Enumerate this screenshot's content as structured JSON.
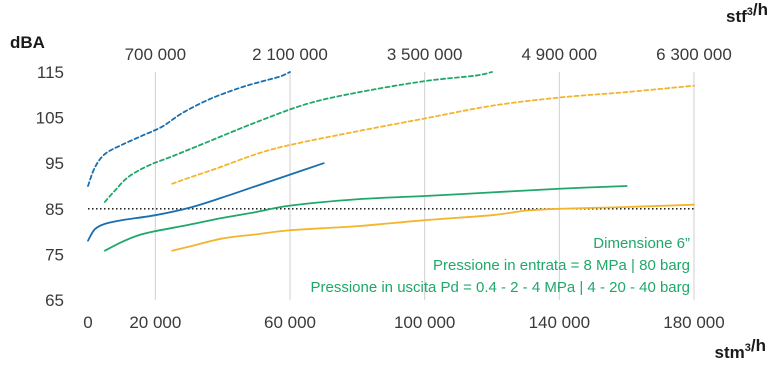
{
  "chart_data": {
    "type": "line",
    "ylabel": "dBA",
    "xlabel": "stm³/h",
    "x2label": "stf³/h",
    "ylim": [
      65,
      115
    ],
    "xlim": [
      0,
      180000
    ],
    "yticks": [
      "65",
      "75",
      "85",
      "95",
      "105",
      "115"
    ],
    "xticks": [
      "0",
      "20 000",
      "60 000",
      "100 000",
      "140 000",
      "180 000"
    ],
    "xtick_values": [
      0,
      20000,
      60000,
      100000,
      140000,
      180000
    ],
    "x2ticks": [
      "700 000",
      "2 100 000",
      "3 500 000",
      "4 900 000",
      "6 300 000"
    ],
    "x2tick_values": [
      20000,
      60000,
      100000,
      140000,
      180000
    ],
    "grid": "vertical",
    "threshold": {
      "y": 85,
      "style": "dotted",
      "color": "#000000"
    },
    "series": [
      {
        "color": "#1a6fb0",
        "dash": true,
        "points": [
          [
            0,
            90
          ],
          [
            2000,
            94
          ],
          [
            5000,
            97
          ],
          [
            10000,
            99
          ],
          [
            16000,
            101
          ],
          [
            22000,
            103
          ],
          [
            28000,
            106
          ],
          [
            36000,
            109
          ],
          [
            45000,
            111.5
          ],
          [
            52000,
            113
          ],
          [
            57000,
            114
          ],
          [
            60000,
            115
          ]
        ]
      },
      {
        "color": "#1a6fb0",
        "dash": false,
        "points": [
          [
            0,
            78
          ],
          [
            2000,
            80.5
          ],
          [
            5000,
            81.7
          ],
          [
            10000,
            82.5
          ],
          [
            20000,
            83.6
          ],
          [
            30000,
            85.2
          ],
          [
            40000,
            87.5
          ],
          [
            50000,
            90
          ],
          [
            60000,
            92.5
          ],
          [
            70000,
            95
          ]
        ]
      },
      {
        "color": "#1fa86a",
        "dash": true,
        "points": [
          [
            5000,
            86.5
          ],
          [
            8000,
            89
          ],
          [
            12000,
            92
          ],
          [
            18000,
            94.5
          ],
          [
            25000,
            96.5
          ],
          [
            35000,
            99.5
          ],
          [
            50000,
            104
          ],
          [
            65000,
            108
          ],
          [
            80000,
            110.5
          ],
          [
            100000,
            113
          ],
          [
            115000,
            114.2
          ],
          [
            120000,
            115
          ]
        ]
      },
      {
        "color": "#1fa86a",
        "dash": false,
        "points": [
          [
            5000,
            75.8
          ],
          [
            10000,
            77.7
          ],
          [
            15000,
            79.2
          ],
          [
            20000,
            80.1
          ],
          [
            30000,
            81.5
          ],
          [
            40000,
            83
          ],
          [
            50000,
            84.3
          ],
          [
            60000,
            85.7
          ],
          [
            80000,
            87.1
          ],
          [
            100000,
            87.8
          ],
          [
            120000,
            88.6
          ],
          [
            140000,
            89.4
          ],
          [
            160000,
            90
          ]
        ]
      },
      {
        "color": "#f2b52d",
        "dash": true,
        "points": [
          [
            25000,
            90.5
          ],
          [
            30000,
            91.8
          ],
          [
            38000,
            93.8
          ],
          [
            50000,
            97
          ],
          [
            60000,
            99
          ],
          [
            80000,
            102
          ],
          [
            100000,
            104.8
          ],
          [
            120000,
            107.6
          ],
          [
            140000,
            109.4
          ],
          [
            160000,
            110.6
          ],
          [
            180000,
            112
          ]
        ]
      },
      {
        "color": "#f2b52d",
        "dash": false,
        "points": [
          [
            25000,
            75.8
          ],
          [
            30000,
            76.7
          ],
          [
            40000,
            78.5
          ],
          [
            50000,
            79.4
          ],
          [
            60000,
            80.3
          ],
          [
            80000,
            81.2
          ],
          [
            100000,
            82.5
          ],
          [
            120000,
            83.6
          ],
          [
            130000,
            84.6
          ],
          [
            140000,
            85
          ],
          [
            160000,
            85.4
          ],
          [
            180000,
            85.9
          ]
        ]
      }
    ],
    "annotations": [
      {
        "text": "Dimensione 6”",
        "color": "#1fa86a"
      },
      {
        "text": "Pressione in entrata = 8 MPa | 80 barg",
        "color": "#1fa86a"
      },
      {
        "text": "Pressione in uscita Pd = 0.4 - 2 - 4 MPa | 4 - 20 - 40 barg",
        "color": "#1fa86a"
      }
    ]
  }
}
